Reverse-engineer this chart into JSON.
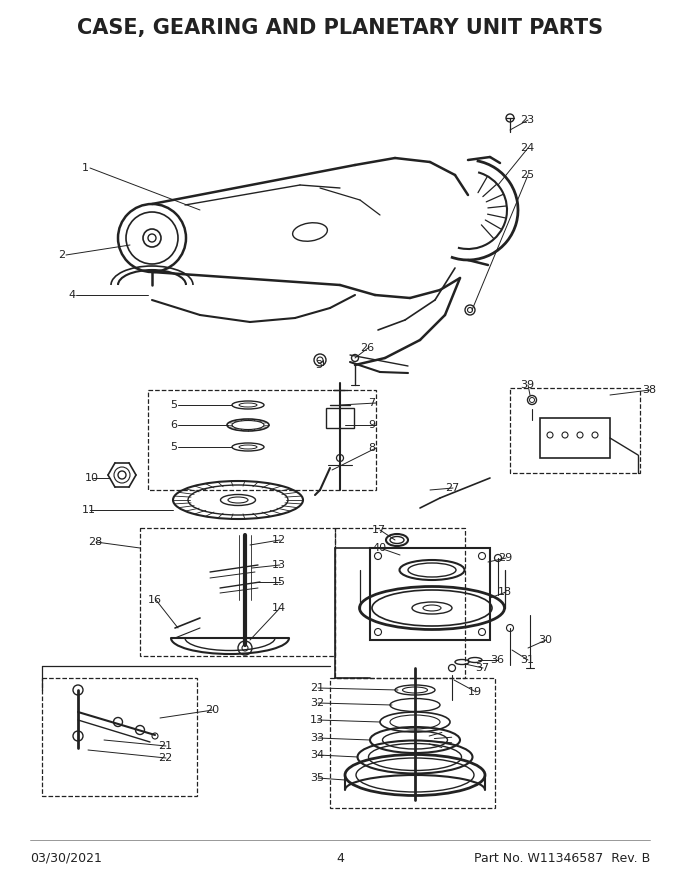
{
  "title": "CASE, GEARING AND PLANETARY UNIT PARTS",
  "title_fontsize": 15,
  "footer_left": "03/30/2021",
  "footer_center": "4",
  "footer_right": "Part No. W11346587  Rev. B",
  "footer_fontsize": 9,
  "bg_color": "#ffffff",
  "line_color": "#222222",
  "text_color": "#222222",
  "figsize": [
    6.8,
    8.8
  ],
  "dpi": 100
}
